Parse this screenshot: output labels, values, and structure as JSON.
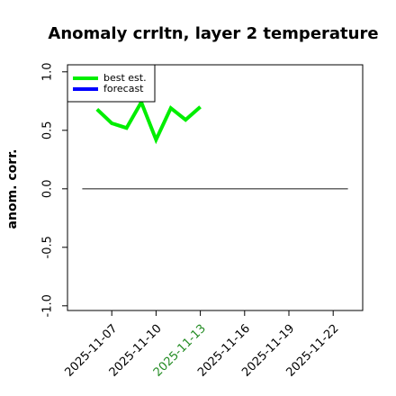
{
  "chart_data": {
    "type": "line",
    "title": "Anomaly crrltn, layer 2 temperature",
    "ylabel": "anom. corr.",
    "x": [
      "2025-11-06",
      "2025-11-07",
      "2025-11-08",
      "2025-11-09",
      "2025-11-10",
      "2025-11-11",
      "2025-11-12",
      "2025-11-13"
    ],
    "series": [
      {
        "name": "best est.",
        "color": "#00ee00",
        "values": [
          0.68,
          0.56,
          0.52,
          0.74,
          0.42,
          0.69,
          0.59,
          0.7
        ]
      },
      {
        "name": "forecast",
        "color": "#0000ff",
        "values": [
          null,
          null,
          null,
          null,
          null,
          null,
          null,
          null
        ]
      }
    ],
    "xlim": [
      "2025-11-04",
      "2025-11-24"
    ],
    "xticks": [
      "2025-11-07",
      "2025-11-10",
      "2025-11-13",
      "2025-11-16",
      "2025-11-19",
      "2025-11-22"
    ],
    "highlight_tick": "2025-11-13",
    "highlight_color": "#228b22",
    "ylim": [
      -1.04,
      1.06
    ],
    "yticks": [
      {
        "value": -1,
        "label": "-1.0"
      },
      -0.5,
      {
        "value": 0,
        "label": "0.0"
      },
      0.5,
      {
        "value": 1,
        "label": "1.0"
      }
    ],
    "hline": {
      "y": 0,
      "x": [
        "2025-11-05",
        "2025-11-23"
      ],
      "color": "#666666"
    },
    "legend": "upper left"
  }
}
